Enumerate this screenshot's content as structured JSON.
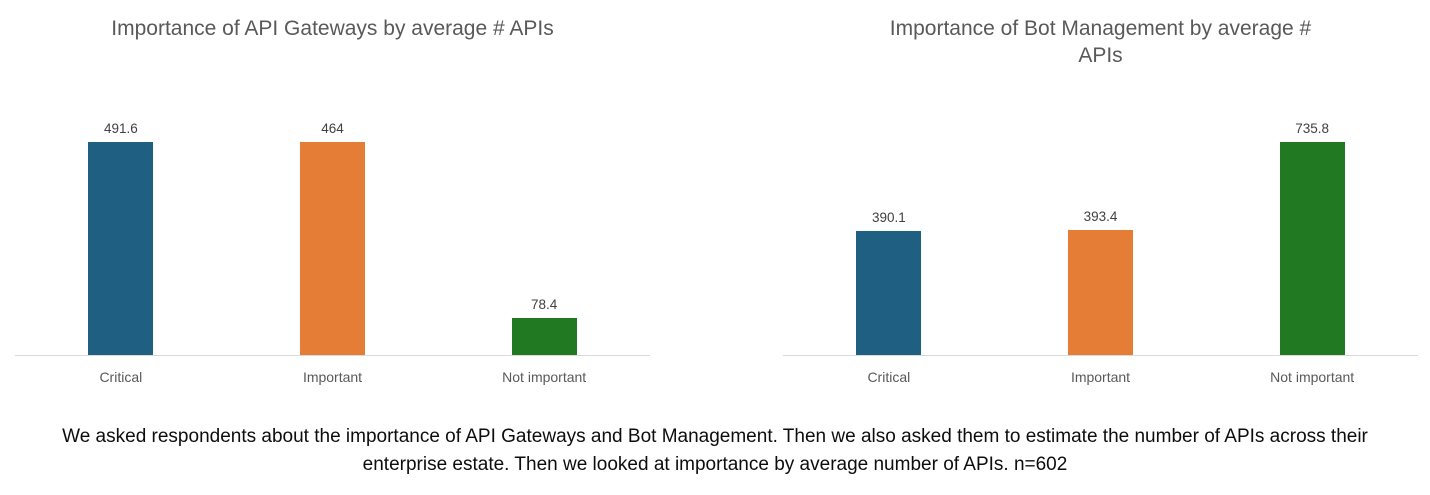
{
  "chart_data": [
    {
      "type": "bar",
      "title": "Importance of API Gateways by average # APIs",
      "categories": [
        "Critical",
        "Important",
        "Not important"
      ],
      "values": [
        491.6,
        464,
        78.4
      ],
      "value_labels": [
        "491.6",
        "464",
        "78.4"
      ],
      "bar_colors": [
        "#1f6082",
        "#e57d36",
        "#217a21"
      ],
      "xlabel": "",
      "ylabel": "",
      "ylim": [
        0,
        491.6
      ],
      "grid": false,
      "legend": false,
      "data_labels": true,
      "y_axis_visible": false
    },
    {
      "type": "bar",
      "title": "Importance of Bot Management by average # APIs",
      "categories": [
        "Critical",
        "Important",
        "Not important"
      ],
      "values": [
        390.1,
        393.4,
        735.8
      ],
      "value_labels": [
        "390.1",
        "393.4",
        "735.8"
      ],
      "bar_colors": [
        "#1f6082",
        "#e57d36",
        "#217a21"
      ],
      "xlabel": "",
      "ylabel": "",
      "ylim": [
        0,
        735.8
      ],
      "grid": false,
      "legend": false,
      "data_labels": true,
      "y_axis_visible": false
    }
  ],
  "caption": {
    "text": "We asked respondents about the importance of API Gateways and Bot Management. Then we also asked them to estimate the number of APIs across their enterprise estate. Then we looked at importance by average number of APIs. n=602"
  },
  "colors": {
    "critical_blue": "#1f6082",
    "important_orange": "#e57d36",
    "not_important_green": "#217a21",
    "axis_line": "#d9d9d9",
    "title_gray": "#595959"
  }
}
